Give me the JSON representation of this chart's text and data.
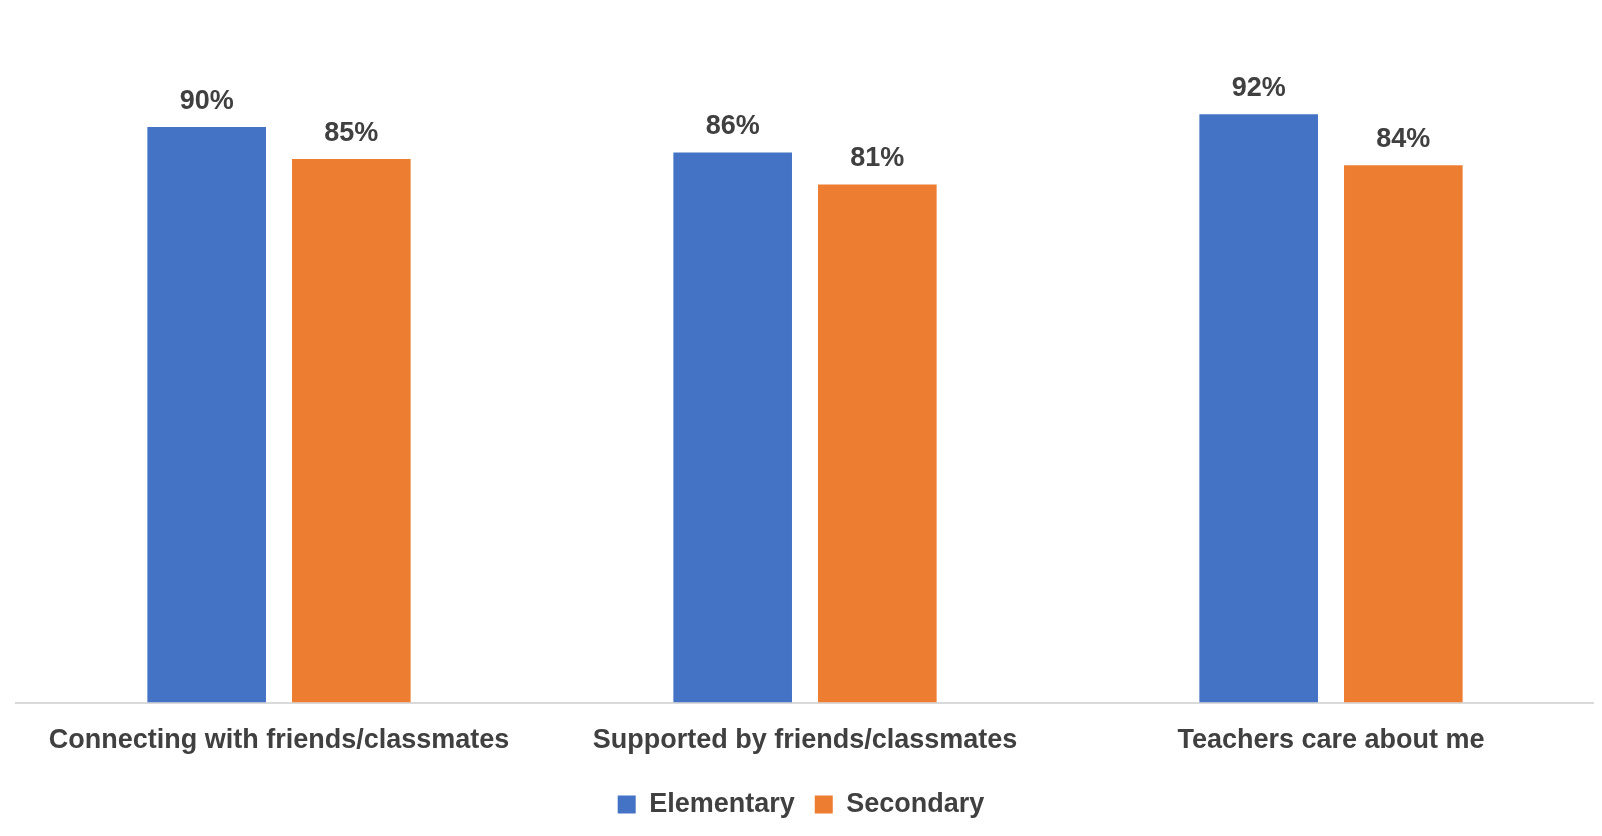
{
  "chart_data": {
    "type": "bar",
    "categories": [
      "Connecting with friends/classmates",
      "Supported by friends/classmates",
      "Teachers care about me"
    ],
    "series": [
      {
        "name": "Elementary",
        "color": "#4472c4",
        "values": [
          90,
          86,
          92
        ],
        "value_labels": [
          "90%",
          "86%",
          "92%"
        ]
      },
      {
        "name": "Secondary",
        "color": "#ed7d31",
        "values": [
          85,
          81,
          84
        ],
        "value_labels": [
          "85%",
          "81%",
          "84%"
        ]
      }
    ],
    "grid": false,
    "legend": "bottom"
  }
}
